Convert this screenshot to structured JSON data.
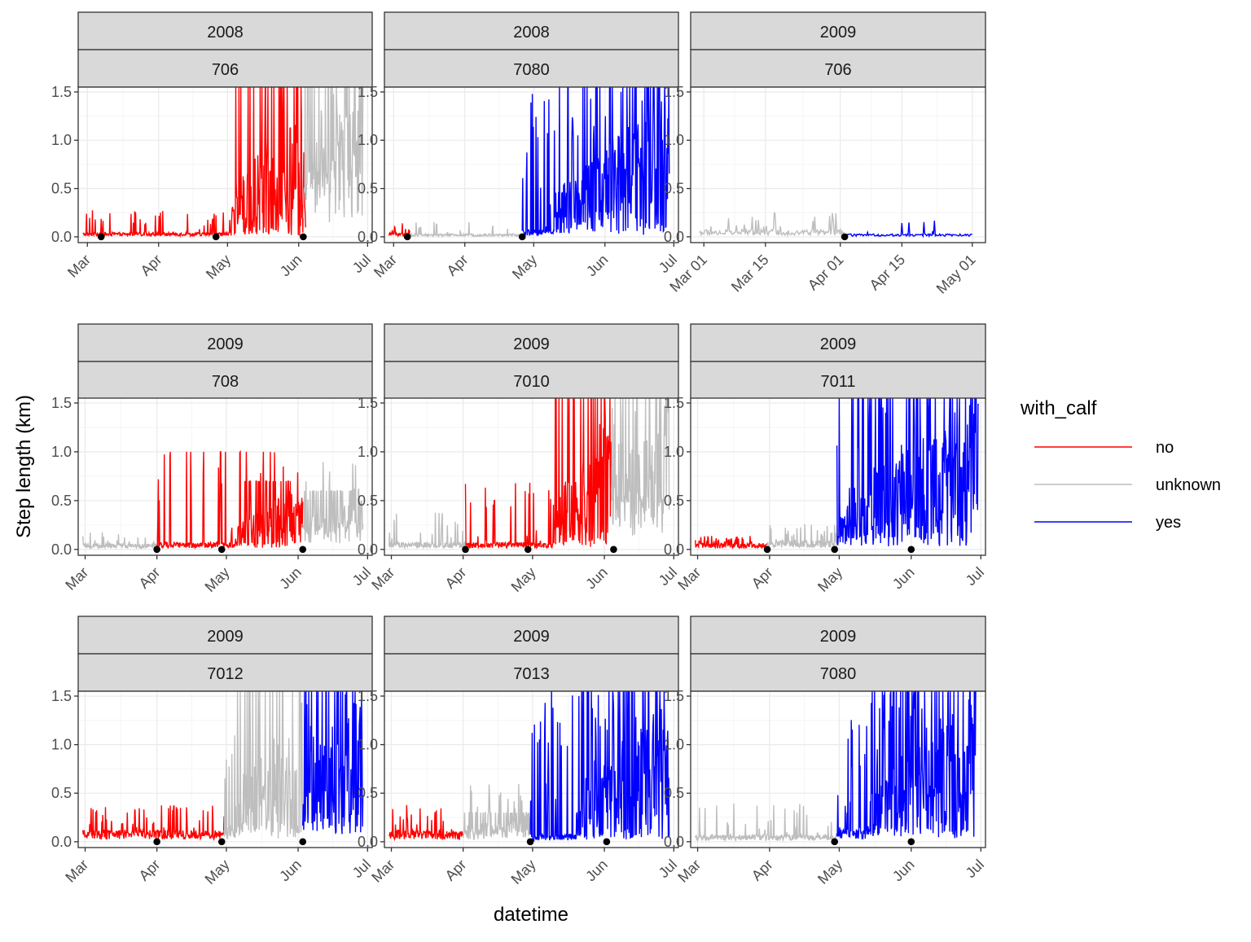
{
  "chart_data": {
    "type": "line",
    "facet_layout": "3x3",
    "xlabel": "datetime",
    "ylabel": "Step length (km)",
    "y_breaks": [
      0.0,
      0.5,
      1.0,
      1.5
    ],
    "y_tick_labels": [
      "0.0",
      "0.5",
      "1.0",
      "1.5"
    ],
    "ylim": [
      0,
      1.55
    ],
    "grid": "on",
    "legend": {
      "title": "with_calf",
      "position": "right",
      "entries": [
        {
          "label": "no",
          "color": "#ff0000"
        },
        {
          "label": "unknown",
          "color": "#bebebe"
        },
        {
          "label": "yes",
          "color": "#0000ff"
        }
      ]
    },
    "panels": [
      {
        "year": "2008",
        "id": "706",
        "x_breaks": [
          "2008-03-01",
          "2008-04-01",
          "2008-05-01",
          "2008-06-01",
          "2008-07-01"
        ],
        "x_tick_labels": [
          "Mar",
          "Apr",
          "May",
          "Jun",
          "Jul"
        ],
        "xlim": [
          "2008-02-26",
          "2008-07-03"
        ],
        "segments": [
          {
            "status": "no",
            "start": "2008-02-28",
            "end": "2008-06-04",
            "base": 0.03,
            "burst_start": "2008-05-02",
            "burst_peak": 1.55,
            "spike_prob": 0.12,
            "spike_max": 0.25
          },
          {
            "status": "unknown",
            "start": "2008-06-03",
            "end": "2008-06-29",
            "base": 0.5,
            "burst_start": "2008-06-03",
            "burst_peak": 1.55,
            "spike_prob": 0.3,
            "spike_max": 1.5
          }
        ],
        "points": [
          "2008-03-07",
          "2008-04-26",
          "2008-06-03"
        ]
      },
      {
        "year": "2008",
        "id": "7080",
        "x_breaks": [
          "2008-03-01",
          "2008-04-01",
          "2008-05-01",
          "2008-06-01",
          "2008-07-01"
        ],
        "x_tick_labels": [
          "Mar",
          "Apr",
          "May",
          "Jun",
          "Jul"
        ],
        "xlim": [
          "2008-02-26",
          "2008-07-03"
        ],
        "segments": [
          {
            "status": "no",
            "start": "2008-02-28",
            "end": "2008-03-08",
            "base": 0.03,
            "burst_start": "2008-03-08",
            "burst_peak": 0.05,
            "spike_prob": 0.2,
            "spike_max": 0.12
          },
          {
            "status": "unknown",
            "start": "2008-03-08",
            "end": "2008-04-26",
            "base": 0.02,
            "burst_start": "2008-04-26",
            "burst_peak": 0.05,
            "spike_prob": 0.08,
            "spike_max": 0.15
          },
          {
            "status": "yes",
            "start": "2008-04-26",
            "end": "2008-06-29",
            "base": 0.05,
            "burst_start": "2008-05-10",
            "burst_peak": 1.55,
            "spike_prob": 0.2,
            "spike_max": 1.5
          }
        ],
        "points": [
          "2008-03-07",
          "2008-04-26"
        ]
      },
      {
        "year": "2009",
        "id": "706",
        "x_breaks": [
          "2009-03-01",
          "2009-03-15",
          "2009-04-01",
          "2009-04-15",
          "2009-05-01"
        ],
        "x_tick_labels": [
          "Mar 01",
          "Mar 15",
          "Apr 01",
          "Apr 15",
          "May 01"
        ],
        "xlim": [
          "2009-02-26",
          "2009-05-04"
        ],
        "segments": [
          {
            "status": "unknown",
            "start": "2009-02-28",
            "end": "2009-04-02",
            "base": 0.05,
            "burst_start": "2009-04-02",
            "burst_peak": 0.08,
            "spike_prob": 0.15,
            "spike_max": 0.22
          },
          {
            "status": "yes",
            "start": "2009-04-02",
            "end": "2009-05-01",
            "base": 0.02,
            "burst_start": "2009-05-01",
            "burst_peak": 0.03,
            "spike_prob": 0.05,
            "spike_max": 0.15
          }
        ],
        "points": [
          "2009-04-02"
        ]
      },
      {
        "year": "2009",
        "id": "708",
        "x_breaks": [
          "2009-03-01",
          "2009-04-01",
          "2009-05-01",
          "2009-06-01",
          "2009-07-01"
        ],
        "x_tick_labels": [
          "Mar",
          "Apr",
          "May",
          "Jun",
          "Jul"
        ],
        "xlim": [
          "2009-02-26",
          "2009-07-03"
        ],
        "segments": [
          {
            "status": "unknown",
            "start": "2009-02-28",
            "end": "2009-04-01",
            "base": 0.04,
            "burst_start": "2009-04-01",
            "burst_peak": 0.06,
            "spike_prob": 0.1,
            "spike_max": 0.15
          },
          {
            "status": "no",
            "start": "2009-04-01",
            "end": "2009-06-03",
            "base": 0.05,
            "burst_start": "2009-05-05",
            "burst_peak": 0.7,
            "spike_prob": 0.12,
            "spike_max": 1.25
          },
          {
            "status": "unknown",
            "start": "2009-06-03",
            "end": "2009-06-29",
            "base": 0.2,
            "burst_start": "2009-06-03",
            "burst_peak": 0.6,
            "spike_prob": 0.15,
            "spike_max": 0.7
          }
        ],
        "points": [
          "2009-04-01",
          "2009-04-29",
          "2009-06-03"
        ]
      },
      {
        "year": "2009",
        "id": "7010",
        "x_breaks": [
          "2009-03-01",
          "2009-04-01",
          "2009-05-01",
          "2009-06-01",
          "2009-07-01"
        ],
        "x_tick_labels": [
          "Mar",
          "Apr",
          "May",
          "Jun",
          "Jul"
        ],
        "xlim": [
          "2009-02-26",
          "2009-07-03"
        ],
        "segments": [
          {
            "status": "unknown",
            "start": "2009-02-28",
            "end": "2009-04-02",
            "base": 0.05,
            "burst_start": "2009-04-02",
            "burst_peak": 0.2,
            "spike_prob": 0.15,
            "spike_max": 0.35
          },
          {
            "status": "no",
            "start": "2009-04-02",
            "end": "2009-06-04",
            "base": 0.05,
            "burst_start": "2009-05-10",
            "burst_peak": 1.55,
            "spike_prob": 0.12,
            "spike_max": 0.65
          },
          {
            "status": "unknown",
            "start": "2009-06-04",
            "end": "2009-06-29",
            "base": 0.4,
            "burst_start": "2009-06-04",
            "burst_peak": 1.55,
            "spike_prob": 0.25,
            "spike_max": 1.55
          }
        ],
        "points": [
          "2009-04-02",
          "2009-04-29",
          "2009-06-05"
        ]
      },
      {
        "year": "2009",
        "id": "7011",
        "x_breaks": [
          "2009-03-01",
          "2009-04-01",
          "2009-05-01",
          "2009-06-01",
          "2009-07-01"
        ],
        "x_tick_labels": [
          "Mar",
          "Apr",
          "May",
          "Jun",
          "Jul"
        ],
        "xlim": [
          "2009-02-26",
          "2009-07-03"
        ],
        "segments": [
          {
            "status": "no",
            "start": "2009-02-28",
            "end": "2009-03-31",
            "base": 0.04,
            "burst_start": "2009-03-31",
            "burst_peak": 0.06,
            "spike_prob": 0.3,
            "spike_max": 0.1
          },
          {
            "status": "unknown",
            "start": "2009-03-31",
            "end": "2009-04-30",
            "base": 0.06,
            "burst_start": "2009-04-30",
            "burst_peak": 0.1,
            "spike_prob": 0.2,
            "spike_max": 0.2
          },
          {
            "status": "yes",
            "start": "2009-04-30",
            "end": "2009-06-30",
            "base": 0.1,
            "burst_start": "2009-05-01",
            "burst_peak": 1.55,
            "spike_prob": 0.25,
            "spike_max": 1.55
          }
        ],
        "points": [
          "2009-03-31",
          "2009-04-29",
          "2009-06-01"
        ]
      },
      {
        "year": "2009",
        "id": "7012",
        "x_breaks": [
          "2009-03-01",
          "2009-04-01",
          "2009-05-01",
          "2009-06-01",
          "2009-07-01"
        ],
        "x_tick_labels": [
          "Mar",
          "Apr",
          "May",
          "Jun",
          "Jul"
        ],
        "xlim": [
          "2009-02-26",
          "2009-07-03"
        ],
        "segments": [
          {
            "status": "no",
            "start": "2009-02-28",
            "end": "2009-04-30",
            "base": 0.08,
            "burst_start": "2009-04-30",
            "burst_peak": 0.3,
            "spike_prob": 0.15,
            "spike_max": 0.3
          },
          {
            "status": "unknown",
            "start": "2009-04-30",
            "end": "2009-06-03",
            "base": 0.1,
            "burst_start": "2009-05-05",
            "burst_peak": 1.55,
            "spike_prob": 0.2,
            "spike_max": 1.0
          },
          {
            "status": "yes",
            "start": "2009-06-03",
            "end": "2009-06-29",
            "base": 0.2,
            "burst_start": "2009-06-03",
            "burst_peak": 1.55,
            "spike_prob": 0.3,
            "spike_max": 1.55
          }
        ],
        "points": [
          "2009-04-01",
          "2009-04-29",
          "2009-06-03"
        ]
      },
      {
        "year": "2009",
        "id": "7013",
        "x_breaks": [
          "2009-03-01",
          "2009-04-01",
          "2009-05-01",
          "2009-06-01",
          "2009-07-01"
        ],
        "x_tick_labels": [
          "Mar",
          "Apr",
          "May",
          "Jun",
          "Jul"
        ],
        "xlim": [
          "2009-02-26",
          "2009-07-03"
        ],
        "segments": [
          {
            "status": "no",
            "start": "2009-02-28",
            "end": "2009-04-01",
            "base": 0.08,
            "burst_start": "2009-04-01",
            "burst_peak": 0.2,
            "spike_prob": 0.15,
            "spike_max": 0.3
          },
          {
            "status": "unknown",
            "start": "2009-04-01",
            "end": "2009-04-30",
            "base": 0.08,
            "burst_start": "2009-04-01",
            "burst_peak": 0.3,
            "spike_prob": 0.15,
            "spike_max": 0.55
          },
          {
            "status": "yes",
            "start": "2009-04-30",
            "end": "2009-06-29",
            "base": 0.05,
            "burst_start": "2009-05-20",
            "burst_peak": 1.55,
            "spike_prob": 0.2,
            "spike_max": 1.55
          }
        ],
        "points": [
          "2009-04-30",
          "2009-06-02"
        ]
      },
      {
        "year": "2009",
        "id": "7080",
        "x_breaks": [
          "2009-03-01",
          "2009-04-01",
          "2009-05-01",
          "2009-06-01",
          "2009-07-01"
        ],
        "x_tick_labels": [
          "Mar",
          "Apr",
          "May",
          "Jun",
          "Jul"
        ],
        "xlim": [
          "2009-02-26",
          "2009-07-03"
        ],
        "segments": [
          {
            "status": "unknown",
            "start": "2009-02-28",
            "end": "2009-04-30",
            "base": 0.05,
            "burst_start": "2009-04-30",
            "burst_peak": 0.1,
            "spike_prob": 0.12,
            "spike_max": 0.35
          },
          {
            "status": "yes",
            "start": "2009-04-30",
            "end": "2009-06-29",
            "base": 0.1,
            "burst_start": "2009-05-15",
            "burst_peak": 1.55,
            "spike_prob": 0.25,
            "spike_max": 1.55
          }
        ],
        "points": [
          "2009-04-29",
          "2009-06-01"
        ]
      }
    ]
  },
  "colors": {
    "strip_fill": "#d9d9d9",
    "strip_border": "#333333",
    "panel_border": "#333333",
    "grid_major": "#ebebeb",
    "grid_minor": "#f5f5f5",
    "point": "#000000"
  }
}
